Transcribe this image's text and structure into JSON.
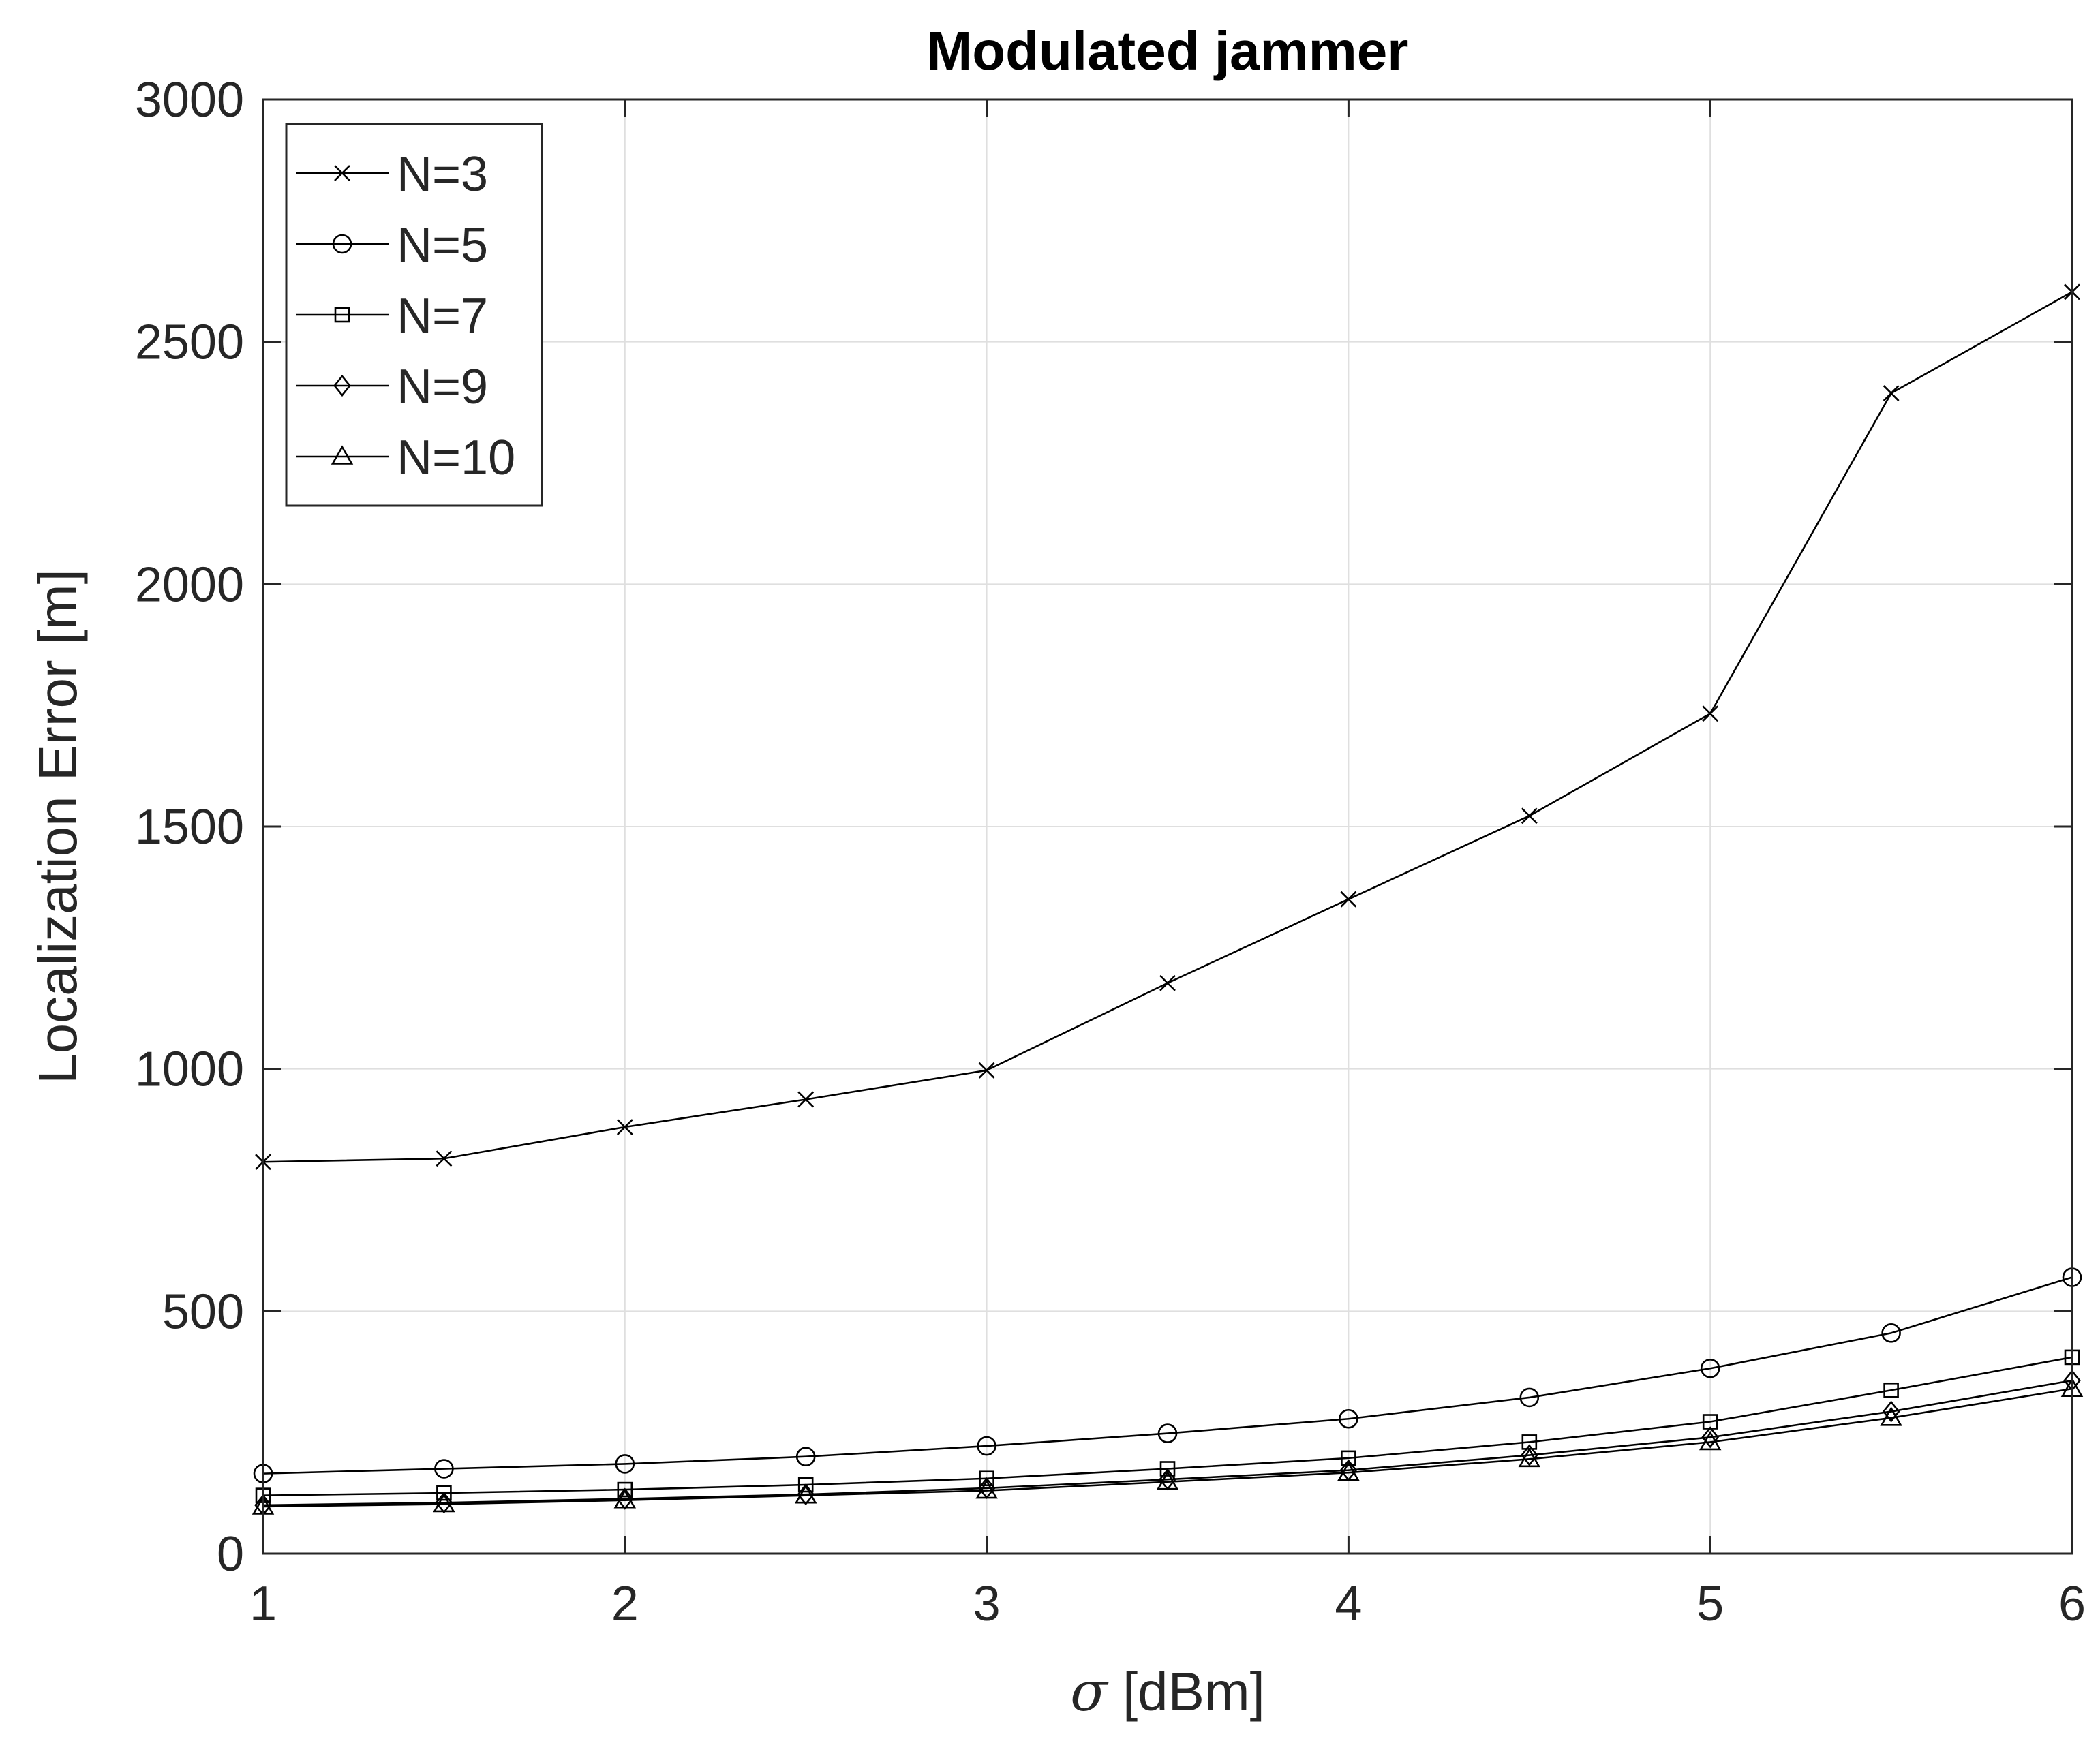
{
  "chart_data": {
    "type": "line",
    "title": "Modulated jammer",
    "xlabel_symbol": "σ",
    "xlabel_unit": "[dBm]",
    "ylabel": "Localization Error [m]",
    "xlim": [
      1,
      6
    ],
    "ylim": [
      0,
      3000
    ],
    "xticks": [
      1,
      2,
      3,
      4,
      5,
      6
    ],
    "yticks": [
      0,
      500,
      1000,
      1500,
      2000,
      2500,
      3000
    ],
    "grid": true,
    "legend_position": "top-left",
    "x": [
      1,
      1.5,
      2,
      2.5,
      3,
      3.5,
      4,
      4.5,
      5,
      5.5,
      6
    ],
    "series": [
      {
        "name": "N=3",
        "marker": "x",
        "values": [
          808,
          815,
          880,
          937,
          997,
          1177,
          1350,
          1522,
          1733,
          2394,
          2603
        ]
      },
      {
        "name": "N=5",
        "marker": "circle",
        "values": [
          165,
          175,
          185,
          200,
          222,
          248,
          278,
          322,
          382,
          455,
          570
        ]
      },
      {
        "name": "N=7",
        "marker": "square",
        "values": [
          120,
          125,
          132,
          142,
          155,
          175,
          197,
          230,
          272,
          337,
          405
        ]
      },
      {
        "name": "N=9",
        "marker": "diamond",
        "values": [
          100,
          105,
          113,
          122,
          135,
          153,
          172,
          203,
          240,
          293,
          357
        ]
      },
      {
        "name": "N=10",
        "marker": "triangle",
        "values": [
          97,
          102,
          110,
          120,
          130,
          148,
          167,
          195,
          230,
          280,
          340
        ]
      }
    ],
    "colors": {
      "line": "#000000",
      "grid": "#dfdfdf",
      "axis": "#262626",
      "background": "#ffffff"
    }
  }
}
